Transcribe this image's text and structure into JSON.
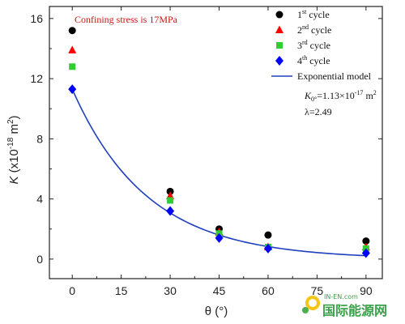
{
  "chart_data": {
    "type": "scatter",
    "title": "",
    "annotation": "Confining stress is 17MPa",
    "xlabel": "θ (°)",
    "ylabel": "K (x10⁻¹⁸ m²)",
    "ylabel_parts": {
      "k": "K",
      "pre": " (x10",
      "exp": "-18",
      "mid": " m",
      "sq": "2",
      "post": ")"
    },
    "xlim": [
      -7,
      95
    ],
    "ylim": [
      -1.3,
      16.8
    ],
    "xticks": [
      0,
      15,
      30,
      45,
      60,
      75,
      90
    ],
    "yticks": [
      0,
      4,
      8,
      12,
      16
    ],
    "grid": false,
    "legend_position": "top-right",
    "series": [
      {
        "name": "1st cycle",
        "label_parts": [
          "1",
          "st",
          " cycle"
        ],
        "marker": "circle",
        "color": "#000000",
        "x": [
          0,
          30,
          45,
          60,
          90
        ],
        "y": [
          15.2,
          4.5,
          2.0,
          1.6,
          1.2
        ]
      },
      {
        "name": "2nd cycle",
        "label_parts": [
          "2",
          "nd",
          " cycle"
        ],
        "marker": "triangle",
        "color": "#ff0000",
        "x": [
          0,
          30,
          45,
          60,
          90
        ],
        "y": [
          13.9,
          4.2,
          1.8,
          0.8,
          0.8
        ]
      },
      {
        "name": "3rd cycle",
        "label_parts": [
          "3",
          "rd",
          " cycle"
        ],
        "marker": "square",
        "color": "#33cc33",
        "x": [
          0,
          30,
          45,
          60,
          90
        ],
        "y": [
          12.8,
          3.9,
          1.7,
          0.8,
          0.7
        ]
      },
      {
        "name": "4th cycle",
        "label_parts": [
          "4",
          "th",
          " cycle"
        ],
        "marker": "diamond",
        "color": "#0000ff",
        "x": [
          0,
          30,
          45,
          60,
          90
        ],
        "y": [
          11.3,
          3.2,
          1.4,
          0.7,
          0.4
        ]
      }
    ],
    "model": {
      "name": "Exponential model",
      "color": "#1f3fbf",
      "k0_line": {
        "k": "K",
        "sub": "0°",
        "eq": "=1.13×10",
        "exp": "-17",
        "unit": " m",
        "sq": "2"
      },
      "lambda_text": "λ=2.49",
      "K0": 11.3,
      "lambda": 2.49,
      "x_range": [
        0,
        90
      ]
    }
  },
  "watermark": {
    "main": "国际能源网",
    "sub": "IN-EN.com"
  }
}
